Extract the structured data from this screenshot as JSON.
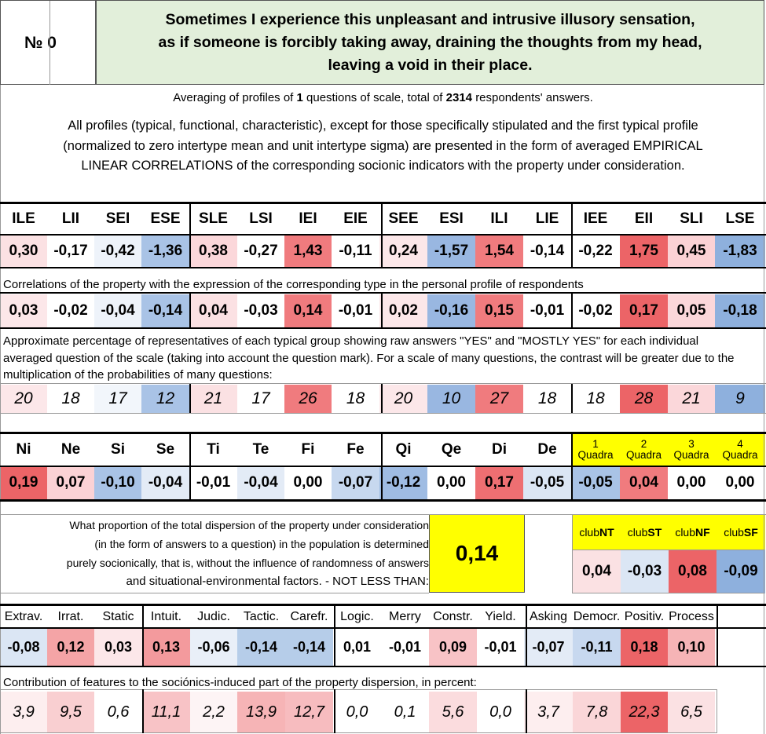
{
  "header": {
    "number_label": "№ 0",
    "title_lines": [
      "Sometimes I experience this unpleasant and intrusive illusory sensation,",
      "as if someone is forcibly taking away, draining the thoughts from my head,",
      "leaving a void in their place."
    ]
  },
  "summary": {
    "prefix": "Averaging of profiles of",
    "questions": "1",
    "middle": "questions of scale, total of",
    "respondents": "2314",
    "suffix": "respondents' answers."
  },
  "description_lines": [
    "All profiles (typical, functional, characteristic), except for those specifically stipulated and the first typical profile",
    "(normalized to zero intertype mean and unit intertype sigma) are presented in the form of averaged EMPIRICAL",
    "LINEAR CORRELATIONS of the corresponding socionic indicators with the property under consideration."
  ],
  "types": {
    "headers": [
      "ILE",
      "LII",
      "SEI",
      "ESE",
      "SLE",
      "LSI",
      "IEI",
      "EIE",
      "SEE",
      "ESI",
      "ILI",
      "LIE",
      "IEE",
      "EII",
      "SLI",
      "LSE"
    ],
    "values": [
      "0,30",
      "-0,17",
      "-0,42",
      "-1,36",
      "0,38",
      "-0,27",
      "1,43",
      "-0,11",
      "0,24",
      "-1,57",
      "1,54",
      "-0,14",
      "-0,22",
      "1,75",
      "0,45",
      "-1,83"
    ],
    "value_colors": [
      "#fbe1e3",
      "#ffffff",
      "#eef3fa",
      "#a9c3e6",
      "#fbd7da",
      "#ffffff",
      "#f07b7e",
      "#ffffff",
      "#fce7e9",
      "#99b7e1",
      "#f07b7e",
      "#ffffff",
      "#ffffff",
      "#ec6467",
      "#fbd2d5",
      "#8eb0dd"
    ],
    "correlation_caption": "Correlations of the property with the expression of the corresponding type in the personal profile of respondents",
    "correlations": [
      "0,03",
      "-0,02",
      "-0,04",
      "-0,14",
      "0,04",
      "-0,03",
      "0,14",
      "-0,01",
      "0,02",
      "-0,16",
      "0,15",
      "-0,01",
      "-0,02",
      "0,17",
      "0,05",
      "-0,18"
    ],
    "correlation_colors": [
      "#fce7e9",
      "#ffffff",
      "#eef3fa",
      "#a9c3e6",
      "#fbe1e3",
      "#ffffff",
      "#f07b7e",
      "#ffffff",
      "#fce7e9",
      "#99b7e1",
      "#f07b7e",
      "#ffffff",
      "#ffffff",
      "#ec6467",
      "#fbd7da",
      "#8eb0dd"
    ],
    "percent_caption_lines": [
      "Approximate percentage of representatives of each typical group showing raw answers \"YES\" and \"MOSTLY YES\" for each individual",
      "averaged question of the scale (taking into account the question mark). For a scale of many questions, the contrast will be greater due to the",
      "multiplication of the probabilities of many questions:"
    ],
    "percents": [
      "20",
      "18",
      "17",
      "12",
      "21",
      "17",
      "26",
      "18",
      "20",
      "10",
      "27",
      "18",
      "18",
      "28",
      "21",
      "9"
    ],
    "percent_colors": [
      "#fce7e9",
      "#ffffff",
      "#f2f6fb",
      "#a9c3e6",
      "#fbe1e3",
      "#ffffff",
      "#f07b7e",
      "#ffffff",
      "#fce7e9",
      "#99b7e1",
      "#f07b7e",
      "#ffffff",
      "#ffffff",
      "#ec6467",
      "#fbd7da",
      "#8eb0dd"
    ]
  },
  "functions": {
    "headers": [
      "Ni",
      "Ne",
      "Si",
      "Se",
      "Ti",
      "Te",
      "Fi",
      "Fe",
      "Qi",
      "Qe",
      "Di",
      "De"
    ],
    "values": [
      "0,19",
      "0,07",
      "-0,10",
      "-0,04",
      "-0,01",
      "-0,04",
      "0,00",
      "-0,07",
      "-0,12",
      "0,00",
      "0,17",
      "-0,05"
    ],
    "colors": [
      "#ec6467",
      "#fbd2d5",
      "#a9c3e6",
      "#e3ebf6",
      "#ffffff",
      "#e3ebf6",
      "#ffffff",
      "#c7d8ef",
      "#9fbce3",
      "#ffffff",
      "#ee6f72",
      "#dbe6f4"
    ],
    "quadra_headers": [
      [
        "1",
        "Quadra"
      ],
      [
        "2",
        "Quadra"
      ],
      [
        "3",
        "Quadra"
      ],
      [
        "4",
        "Quadra"
      ]
    ],
    "quadra_values": [
      "-0,05",
      "0,04",
      "0,00",
      "0,00"
    ],
    "quadra_colors": [
      "#a9c3e6",
      "#f07b7e",
      "#ffffff",
      "#ffffff"
    ]
  },
  "dispersion": {
    "text_lines": [
      "What proportion of the total dispersion of the property under consideration",
      "(in the form of answers to a question) in the population is determined",
      "purely socionically, that is, without the influence of randomness of answers",
      "and situational-environmental factors. - NOT LESS THAN:"
    ],
    "value": "0,14"
  },
  "clubs": {
    "headers": [
      [
        "club",
        "NT"
      ],
      [
        "club",
        "ST"
      ],
      [
        "club",
        "NF"
      ],
      [
        "club",
        "SF"
      ]
    ],
    "values": [
      "0,04",
      "-0,03",
      "0,08",
      "-0,09"
    ],
    "colors": [
      "#fbe1e3",
      "#dbe6f4",
      "#ec6467",
      "#8eb0dd"
    ]
  },
  "features": {
    "headers": [
      "Extrav.",
      "Irrat.",
      "Static",
      "Intuit.",
      "Judic.",
      "Tactic.",
      "Carefr.",
      "Logic.",
      "Merry",
      "Constr.",
      "Yield.",
      "Asking",
      "Democr.",
      "Positiv.",
      "Process"
    ],
    "values": [
      "-0,08",
      "0,12",
      "0,03",
      "0,13",
      "-0,06",
      "-0,14",
      "-0,14",
      "0,01",
      "-0,01",
      "0,09",
      "-0,01",
      "-0,07",
      "-0,11",
      "0,18",
      "0,10"
    ],
    "value_colors": [
      "#dbe6f4",
      "#f4a4a6",
      "#fce7e9",
      "#f39a9d",
      "#e9eff8",
      "#b6cde9",
      "#b6cde9",
      "#ffffff",
      "#ffffff",
      "#f8c3c6",
      "#ffffff",
      "#e3ebf6",
      "#c7d8ef",
      "#ec6467",
      "#f6b4b6"
    ],
    "contribution_caption": "Contribution of features to the sociónics-induced part of the property dispersion, in percent:",
    "contributions": [
      "3,9",
      "9,5",
      "0,6",
      "11,1",
      "2,2",
      "13,9",
      "12,7",
      "0,0",
      "0,1",
      "5,6",
      "0,0",
      "3,7",
      "7,8",
      "22,3",
      "6,5"
    ],
    "contribution_colors": [
      "#fdeeef",
      "#f9cfd1",
      "#ffffff",
      "#f8c3c6",
      "#fdf4f5",
      "#f6b4b6",
      "#f7bcbf",
      "#ffffff",
      "#ffffff",
      "#fbdcde",
      "#ffffff",
      "#fdeeef",
      "#fad6d8",
      "#ec6467",
      "#fbe1e3"
    ]
  }
}
